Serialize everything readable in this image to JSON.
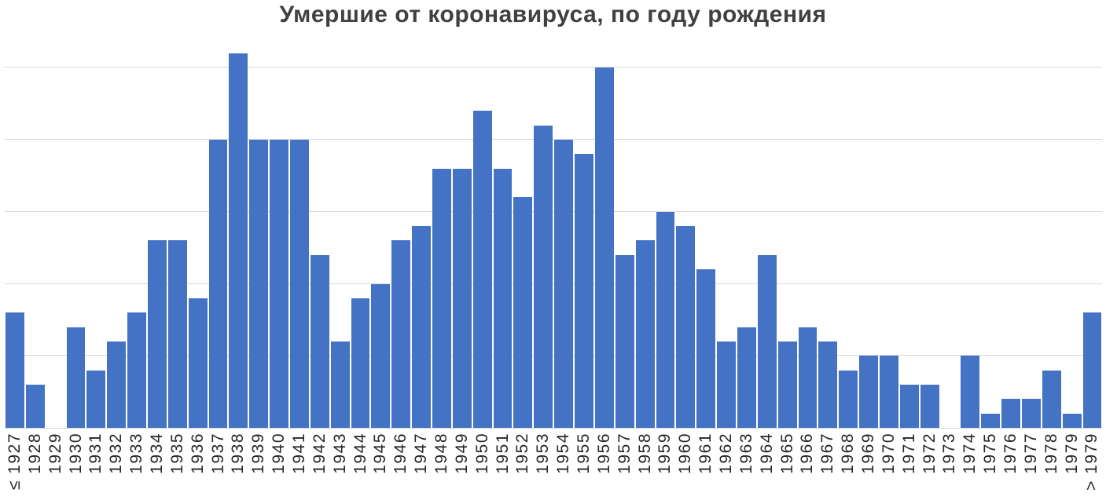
{
  "chart_data": {
    "type": "bar",
    "title": "Умершие от коронавируса, по году рождения",
    "xlabel": "",
    "ylabel": "",
    "categories": [
      "≤ 1927",
      "1928",
      "1929",
      "1930",
      "1931",
      "1932",
      "1933",
      "1934",
      "1935",
      "1936",
      "1937",
      "1938",
      "1939",
      "1940",
      "1941",
      "1942",
      "1943",
      "1944",
      "1945",
      "1946",
      "1947",
      "1948",
      "1949",
      "1950",
      "1951",
      "1952",
      "1953",
      "1954",
      "1955",
      "1956",
      "1957",
      "1958",
      "1959",
      "1960",
      "1961",
      "1962",
      "1963",
      "1964",
      "1965",
      "1966",
      "1967",
      "1968",
      "1969",
      "1970",
      "1971",
      "1972",
      "1973",
      "1974",
      "1975",
      "1976",
      "1977",
      "1978",
      "1979",
      "> 1979"
    ],
    "values": [
      8,
      3,
      0,
      7,
      4,
      6,
      8,
      13,
      13,
      9,
      20,
      26,
      20,
      20,
      20,
      12,
      6,
      9,
      10,
      13,
      14,
      18,
      18,
      22,
      18,
      16,
      21,
      20,
      19,
      25,
      12,
      13,
      15,
      14,
      11,
      6,
      7,
      12,
      6,
      7,
      6,
      4,
      5,
      5,
      3,
      3,
      0,
      5,
      1,
      2,
      2,
      4,
      1,
      8
    ],
    "ylim": [
      0,
      26.65
    ],
    "gridlines": [
      5,
      10,
      15,
      20,
      25
    ],
    "grid": "on",
    "legend": "none",
    "y_axis_tick_labels": "hidden",
    "x_tick_label_rotation_degrees": 90,
    "colors": {
      "bar": "#4472C4",
      "gridline": "#D9D9D9",
      "axis_line": "#D9D9D9",
      "title_text": "#404040",
      "tick_label_text": "#262626",
      "background": "#FFFFFF"
    }
  }
}
